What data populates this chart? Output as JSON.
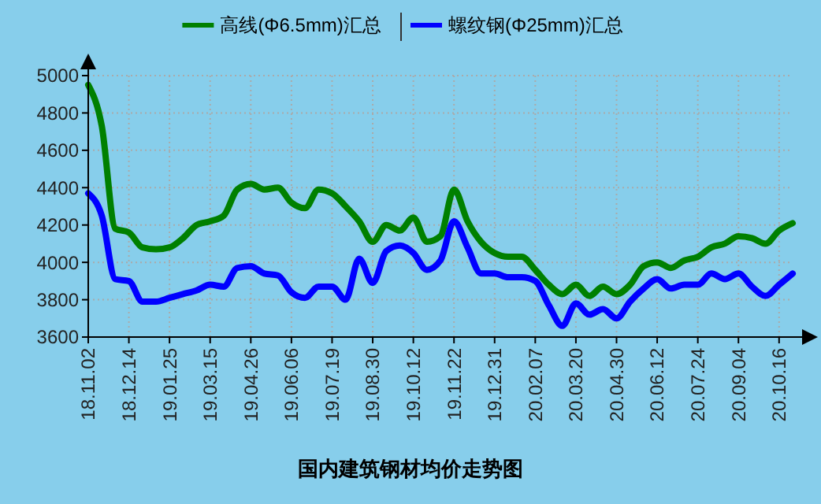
{
  "chart_data": {
    "type": "line",
    "title": "国内建筑钢材均价走势图",
    "categories": [
      "18.11.02",
      null,
      null,
      "18.12.14",
      null,
      null,
      "19.01.25",
      null,
      null,
      "19.03.15",
      null,
      null,
      "19.04.26",
      null,
      null,
      "19.06.06",
      null,
      null,
      "19.07.19",
      null,
      null,
      "19.08.30",
      null,
      null,
      "19.10.12",
      null,
      null,
      "19.11.22",
      null,
      null,
      "19.12.31",
      null,
      null,
      "20.02.07",
      null,
      null,
      "20.03.20",
      null,
      null,
      "20.04.30",
      null,
      null,
      "20.06.12",
      null,
      null,
      "20.07.24",
      null,
      null,
      "20.09.04",
      null,
      null,
      "20.10.16",
      null
    ],
    "series": [
      {
        "name": "高线(Φ6.5mm)汇总",
        "color": "#008000",
        "values": [
          4950,
          4730,
          4180,
          4160,
          4080,
          4070,
          4080,
          4130,
          4200,
          4220,
          4250,
          4390,
          4420,
          4390,
          4400,
          4320,
          4290,
          4390,
          4370,
          4300,
          4220,
          4110,
          4200,
          4170,
          4240,
          4110,
          4140,
          4390,
          4220,
          4110,
          4050,
          4030,
          4030,
          3960,
          3880,
          3830,
          3880,
          3820,
          3870,
          3830,
          3880,
          3980,
          4000,
          3970,
          4010,
          4030,
          4080,
          4100,
          4140,
          4130,
          4100,
          4170,
          4210
        ]
      },
      {
        "name": "螺纹钢(Φ25mm)汇总",
        "color": "#0000ff",
        "values": [
          4370,
          4250,
          3910,
          3900,
          3790,
          3790,
          3810,
          3830,
          3850,
          3880,
          3870,
          3970,
          3980,
          3940,
          3930,
          3840,
          3810,
          3870,
          3870,
          3800,
          4020,
          3890,
          4060,
          4090,
          4050,
          3960,
          4010,
          4220,
          4080,
          3940,
          3940,
          3920,
          3920,
          3900,
          3770,
          3660,
          3780,
          3720,
          3750,
          3700,
          3790,
          3860,
          3910,
          3860,
          3880,
          3880,
          3940,
          3910,
          3940,
          3870,
          3820,
          3880,
          3940
        ]
      }
    ],
    "ylim": [
      3600,
      5000
    ],
    "yticks": [
      3600,
      3800,
      4000,
      4200,
      4400,
      4600,
      4800,
      5000
    ],
    "grid": true,
    "legend": "top",
    "marker": "none",
    "line_style": "solid"
  }
}
